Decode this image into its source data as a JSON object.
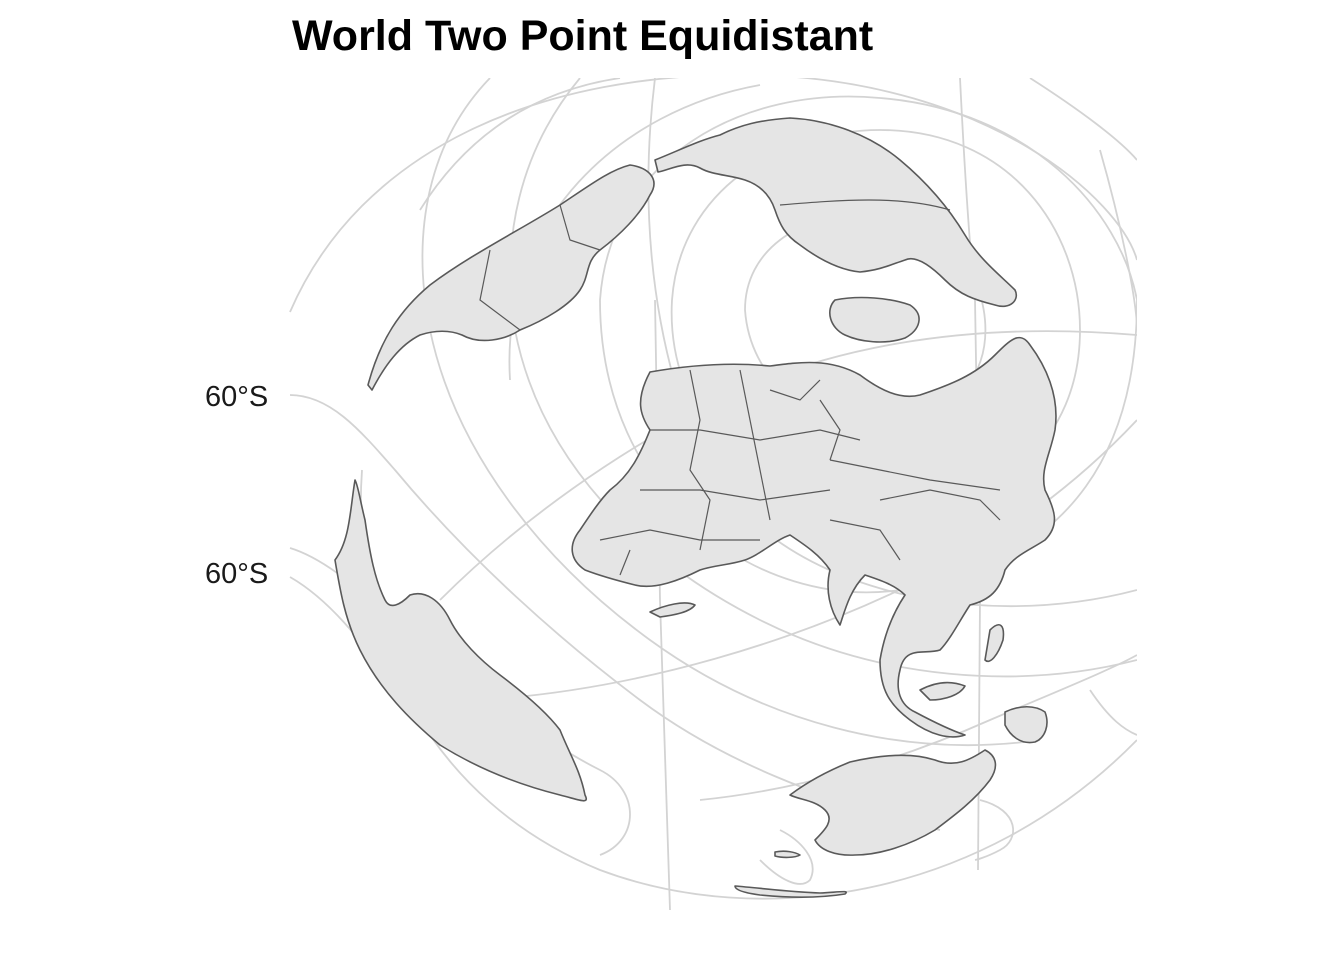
{
  "map": {
    "title": "World Two Point Equidistant",
    "projection": "two-point-equidistant",
    "background_color": "#ffffff",
    "land_color": "#e5e5e5",
    "border_color": "#595959",
    "graticule_color": "#d3d3d3",
    "latitude_labels": [
      "60°S",
      "60°S"
    ]
  }
}
